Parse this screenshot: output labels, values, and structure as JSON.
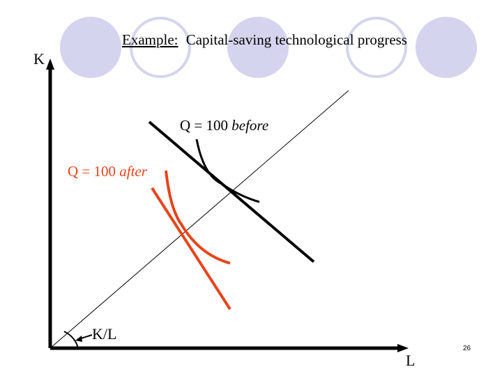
{
  "slide": {
    "title_prefix": "Example:",
    "title_rest": "Capital-saving technological progress",
    "page_number": "26"
  },
  "axes": {
    "y_label": "K",
    "x_label": "L",
    "ray_label": "K/L"
  },
  "curves": {
    "before": {
      "label_main": "Q = 100 ",
      "label_qualifier": "before",
      "color": "#000000"
    },
    "after": {
      "label_main": "Q = 100 ",
      "label_qualifier": "after",
      "color": "#e8441a"
    }
  },
  "decoration": {
    "circle_fill": "#d4d4ee",
    "circle_outline": "#d4d4ee"
  }
}
